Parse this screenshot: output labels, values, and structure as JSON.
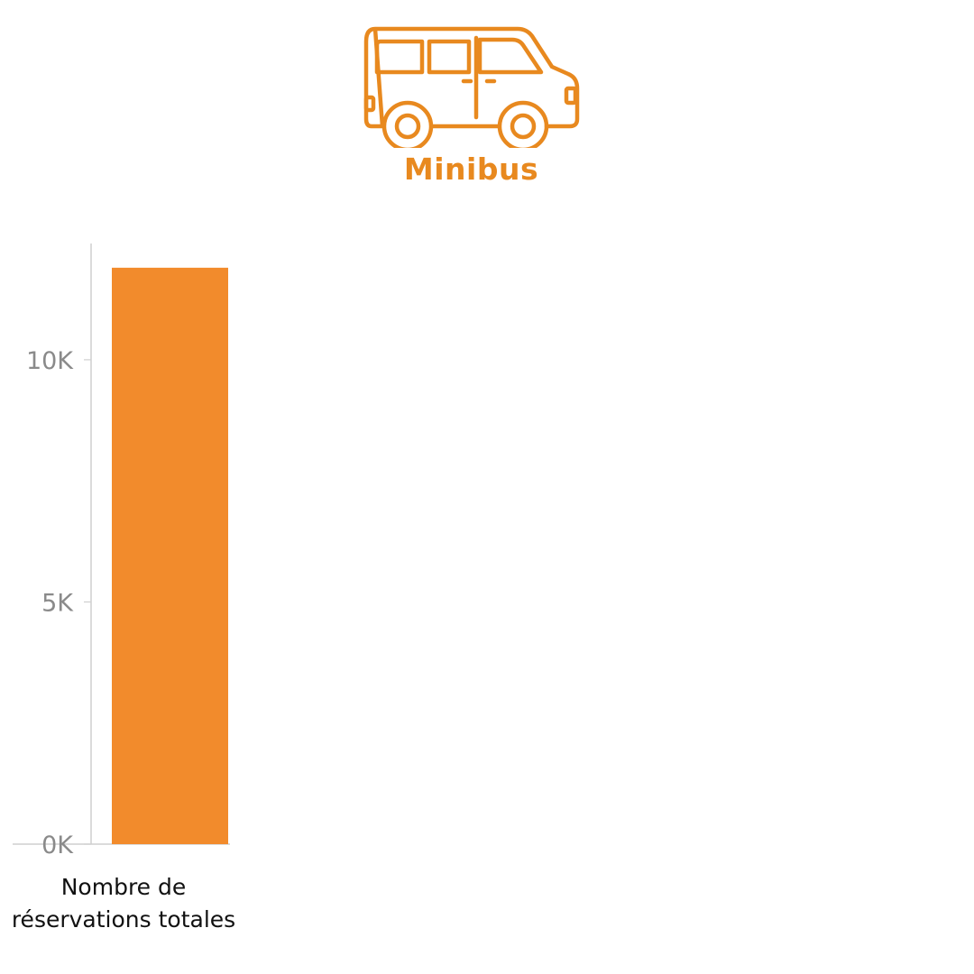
{
  "header": {
    "icon": "minibus-icon",
    "title": "Minibus"
  },
  "colors": {
    "accent": "#E8891F",
    "bar": "#F28B2C",
    "axis_text": "#8a8a8a",
    "axis_line": "#cfcfcf"
  },
  "chart_data": {
    "type": "bar",
    "categories": [
      "Nombre de réservations totales"
    ],
    "category_label_lines": [
      "Nombre de",
      "réservations totales"
    ],
    "values": [
      11900
    ],
    "ylim": [
      0,
      12400
    ],
    "yticks": [
      0,
      5000,
      10000
    ],
    "ytick_labels": [
      "0K",
      "5K",
      "10K"
    ],
    "grid": false,
    "legend": "none"
  }
}
